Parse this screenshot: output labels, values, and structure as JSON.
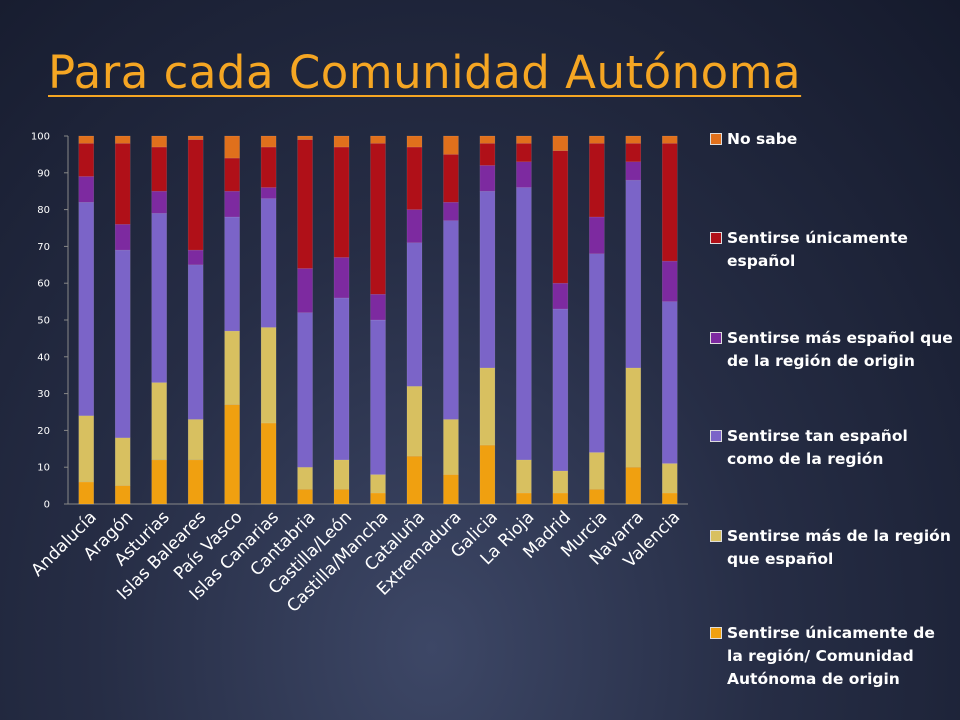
{
  "slide": {
    "title": "Para cada Comunidad Autónoma"
  },
  "chart_data": {
    "type": "bar",
    "stacked": true,
    "ylim": [
      0,
      100
    ],
    "yticks": [
      0,
      10,
      20,
      30,
      40,
      50,
      60,
      70,
      80,
      90,
      100
    ],
    "categories": [
      "Andalucía",
      "Aragón",
      "Asturias",
      "Islas Baleares",
      "País Vasco",
      "Islas Canarias",
      "Cantabria",
      "Castilla/León",
      "Castilla/Mancha",
      "Cataluña",
      "Extremadura",
      "Galicia",
      "La Rioja",
      "Madrid",
      "Murcia",
      "Navarra",
      "Valencia"
    ],
    "legend_position": "right",
    "series": [
      {
        "name": "Sentirse únicamente de la región/ Comunidad Autónoma de origin",
        "color": "#f0a010",
        "values": [
          6,
          5,
          12,
          12,
          27,
          22,
          4,
          4,
          3,
          13,
          8,
          16,
          3,
          3,
          4,
          10,
          3
        ]
      },
      {
        "name": "Sentirse más de la región que español",
        "color": "#d8c060",
        "values": [
          18,
          13,
          21,
          11,
          20,
          26,
          6,
          8,
          5,
          19,
          15,
          21,
          9,
          6,
          10,
          27,
          8
        ]
      },
      {
        "name": "Sentirse tan español como de la región",
        "color": "#7b64c8",
        "values": [
          58,
          51,
          46,
          42,
          31,
          35,
          42,
          44,
          42,
          39,
          54,
          48,
          74,
          44,
          54,
          51,
          44
        ]
      },
      {
        "name": "Sentirse más español que de la región de origin",
        "color": "#7d2aa0",
        "values": [
          7,
          7,
          6,
          4,
          7,
          3,
          12,
          11,
          7,
          9,
          5,
          7,
          7,
          7,
          10,
          5,
          11
        ]
      },
      {
        "name": "Sentirse únicamente español",
        "color": "#b01018",
        "values": [
          9,
          22,
          12,
          30,
          9,
          11,
          35,
          30,
          41,
          17,
          13,
          6,
          5,
          36,
          20,
          5,
          32
        ]
      },
      {
        "name": "No sabe",
        "color": "#e0701c",
        "values": [
          2,
          2,
          3,
          1,
          6,
          3,
          1,
          3,
          2,
          3,
          5,
          2,
          2,
          4,
          2,
          2,
          2
        ]
      }
    ]
  }
}
